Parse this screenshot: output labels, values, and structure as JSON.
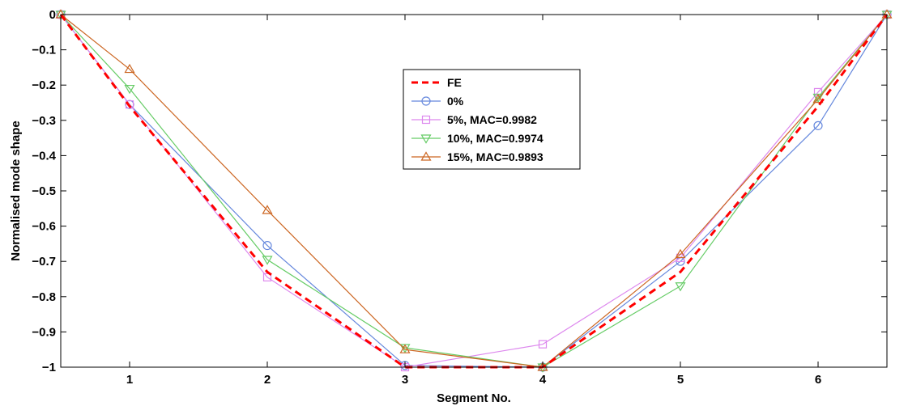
{
  "chart_data": {
    "type": "line",
    "title": "",
    "xlabel": "Segment No.",
    "ylabel": "Normalised mode shape",
    "xlim": [
      0.5,
      6.5
    ],
    "ylim": [
      -1,
      0
    ],
    "xticks": [
      1,
      2,
      3,
      4,
      5,
      6
    ],
    "yticks": [
      0,
      -0.1,
      -0.2,
      -0.3,
      -0.4,
      -0.5,
      -0.6,
      -0.7,
      -0.8,
      -0.9,
      -1
    ],
    "ytick_labels": [
      "0",
      "−0.1",
      "−0.2",
      "−0.3",
      "−0.4",
      "−0.5",
      "−0.6",
      "−0.7",
      "−0.8",
      "−0.9",
      "−1"
    ],
    "grid": false,
    "legend_position": "upper-center",
    "x": [
      0.5,
      1,
      2,
      3,
      4,
      5,
      6,
      6.5
    ],
    "series": [
      {
        "name": "FE",
        "values": [
          0,
          -0.26,
          -0.73,
          -1.0,
          -1.0,
          -0.73,
          -0.26,
          0
        ],
        "color": "#ff0000",
        "dash": true,
        "marker": "none"
      },
      {
        "name": "0%",
        "values": [
          0,
          -0.255,
          -0.655,
          -0.995,
          -1.0,
          -0.7,
          -0.315,
          0
        ],
        "color": "#6688dd",
        "dash": false,
        "marker": "circle"
      },
      {
        "name": "5%,   MAC=0.9982",
        "values": [
          0,
          -0.255,
          -0.745,
          -1.0,
          -0.935,
          -0.69,
          -0.22,
          0
        ],
        "color": "#dd88ee",
        "dash": false,
        "marker": "square"
      },
      {
        "name": "10%, MAC=0.9974",
        "values": [
          0,
          -0.21,
          -0.695,
          -0.945,
          -1.0,
          -0.77,
          -0.235,
          0
        ],
        "color": "#66cc66",
        "dash": false,
        "marker": "triangle-down"
      },
      {
        "name": "15%, MAC=0.9893",
        "values": [
          0,
          -0.155,
          -0.555,
          -0.95,
          -1.0,
          -0.68,
          -0.24,
          0
        ],
        "color": "#cc6622",
        "dash": false,
        "marker": "triangle-up"
      }
    ]
  }
}
